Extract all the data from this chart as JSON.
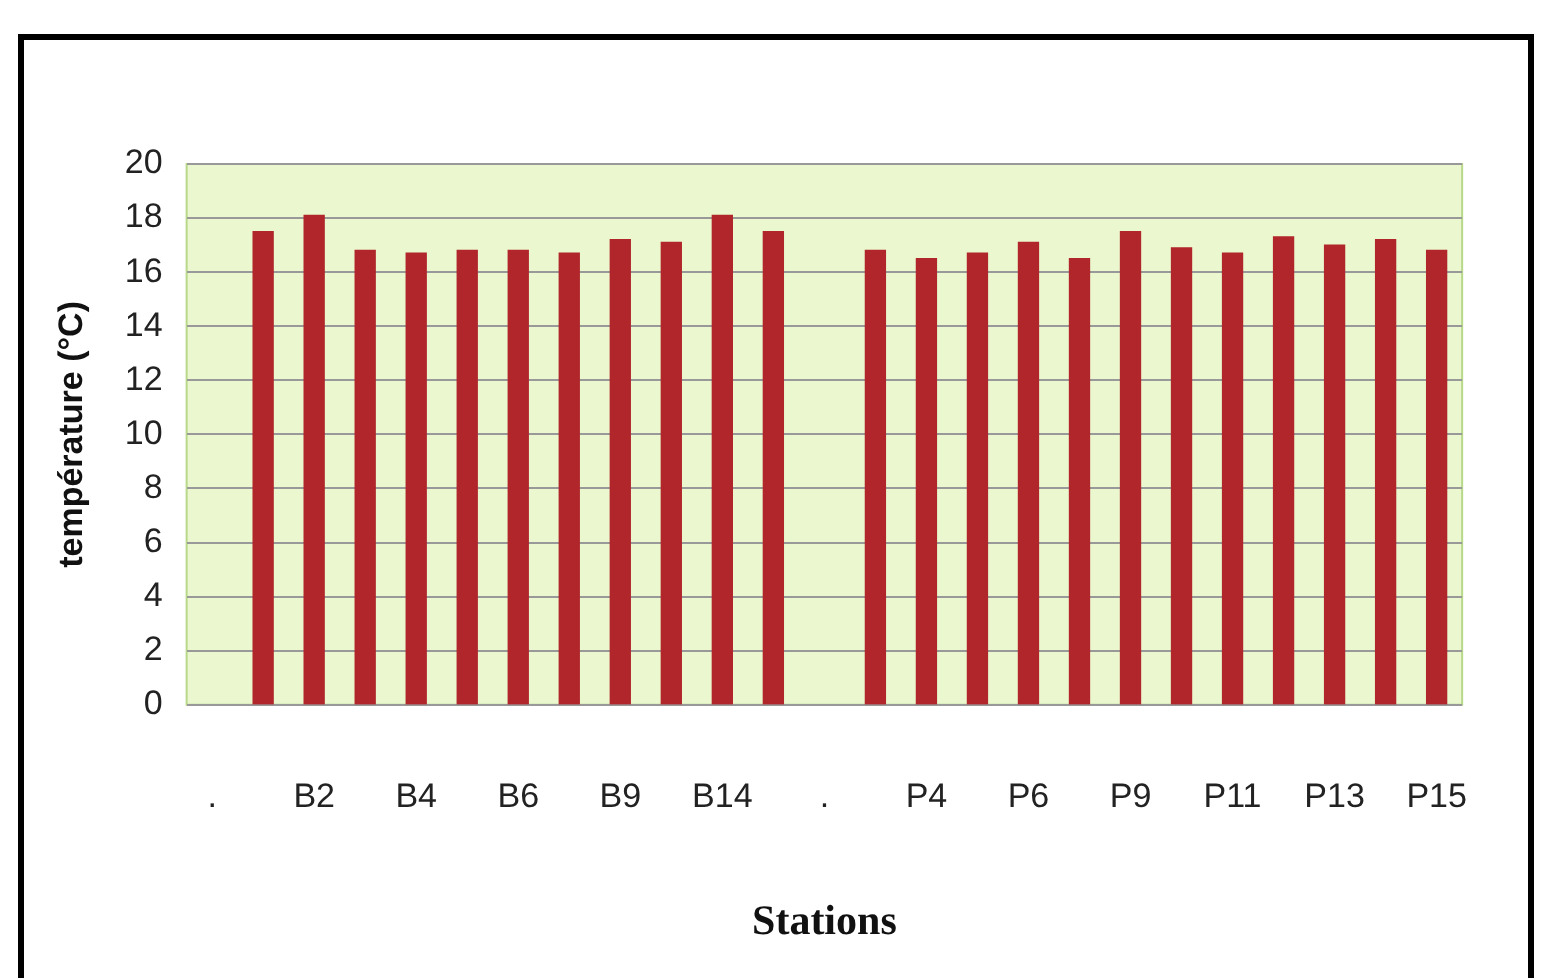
{
  "chart_data": {
    "type": "bar",
    "xlabel": "Stations",
    "ylabel": "température (°C)",
    "categories": [
      ".",
      null,
      "B2",
      null,
      "B4",
      null,
      "B6",
      null,
      "B9",
      null,
      "B14",
      null,
      ".",
      null,
      "P4",
      null,
      "P6",
      null,
      "P9",
      null,
      "P11",
      null,
      "P13",
      null,
      "P15"
    ],
    "values": [
      null,
      17.5,
      18.1,
      16.8,
      16.7,
      16.8,
      16.8,
      16.7,
      17.2,
      17.1,
      18.1,
      17.5,
      null,
      16.8,
      16.5,
      16.7,
      17.1,
      16.5,
      17.5,
      16.9,
      16.7,
      17.3,
      17.0,
      17.2,
      16.8
    ],
    "color": "#b0262a",
    "ylim": [
      0,
      20
    ],
    "yticks": [
      0,
      2,
      4,
      6,
      8,
      10,
      12,
      14,
      16,
      18,
      20
    ],
    "grid": "y",
    "legend": false
  }
}
